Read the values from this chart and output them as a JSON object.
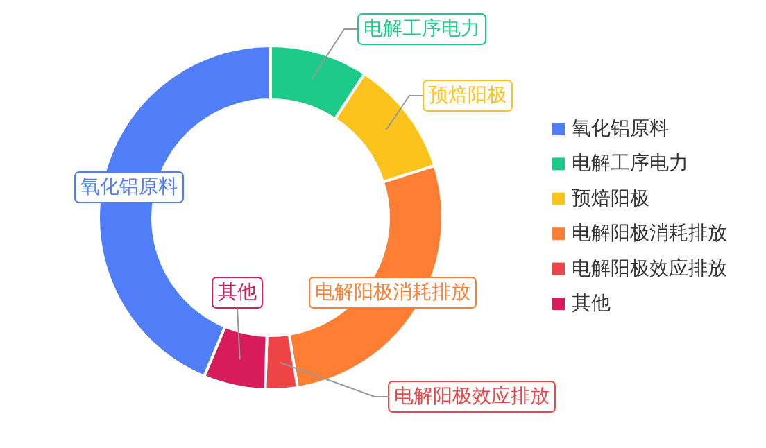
{
  "chart_data": {
    "type": "donut",
    "categories": [
      "氧化铝原料",
      "电解工序电力",
      "预焙阳极",
      "电解阳极消耗排放",
      "电解阳极效应排放",
      "其他"
    ],
    "values": [
      43.7,
      9.2,
      10.9,
      27.4,
      3.0,
      5.8
    ],
    "colors": [
      "#4f7ef8",
      "#1ccb88",
      "#fdc31d",
      "#fe7f33",
      "#ee4445",
      "#d81c5b"
    ],
    "legend": "right"
  }
}
